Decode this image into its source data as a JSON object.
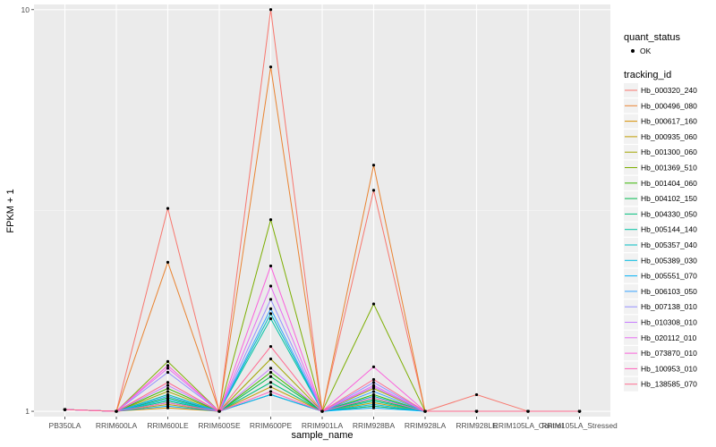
{
  "chart_data": {
    "type": "line",
    "title": "",
    "xlabel": "sample_name",
    "ylabel": "FPKM + 1",
    "y_scale": "log10",
    "ylim": [
      0.97,
      10.3
    ],
    "y_ticks": [
      "1",
      "10"
    ],
    "y_tick_values": [
      1,
      10
    ],
    "categories": [
      "PB350LA",
      "RRIM600LA",
      "RRIM600LE",
      "RRIM600SE",
      "RRIM600PE",
      "RRIM901LA",
      "RRIM928BA",
      "RRIM928LA",
      "RRIM928LE",
      "RRIM105LA_Control",
      "RRIM105LA_Stressed"
    ],
    "grid": true,
    "legend_position": "right",
    "legend_quant": {
      "title": "quant_status",
      "label": "OK"
    },
    "legend_title": "tracking_id",
    "series": [
      {
        "name": "Hb_000320_240",
        "color": "#F8766D",
        "values": [
          1.01,
          1,
          3.2,
          1,
          10,
          1,
          3.55,
          1,
          1.1,
          1,
          1
        ]
      },
      {
        "name": "Hb_000496_080",
        "color": "#EA8331",
        "values": [
          1.01,
          1,
          2.35,
          1,
          7.2,
          1,
          4.1,
          1,
          1,
          1,
          1
        ]
      },
      {
        "name": "Hb_000617_160",
        "color": "#D89000",
        "values": [
          1.01,
          1,
          1.02,
          1,
          1.1,
          1,
          1.03,
          1,
          1,
          1,
          1
        ]
      },
      {
        "name": "Hb_000935_060",
        "color": "#C09B00",
        "values": [
          1.01,
          1,
          1.04,
          1,
          1.15,
          1,
          1.05,
          1,
          1,
          1,
          1
        ]
      },
      {
        "name": "Hb_001300_060",
        "color": "#A3A500",
        "values": [
          1.01,
          1,
          1.12,
          1,
          1.35,
          1,
          1.14,
          1,
          1,
          1,
          1
        ]
      },
      {
        "name": "Hb_001369_510",
        "color": "#7CAE00",
        "values": [
          1.01,
          1,
          1.33,
          1,
          3.0,
          1,
          1.85,
          1,
          1,
          1,
          1
        ]
      },
      {
        "name": "Hb_001404_060",
        "color": "#39B600",
        "values": [
          1.01,
          1,
          1.14,
          1,
          1.25,
          1,
          1.1,
          1,
          1,
          1,
          1
        ]
      },
      {
        "name": "Hb_004102_150",
        "color": "#00BB4E",
        "values": [
          1.01,
          1,
          1.08,
          1,
          1.22,
          1,
          1.07,
          1,
          1,
          1,
          1
        ]
      },
      {
        "name": "Hb_004330_050",
        "color": "#00BF7D",
        "values": [
          1.01,
          1,
          1.06,
          1,
          1.18,
          1,
          1.03,
          1,
          1,
          1,
          1
        ]
      },
      {
        "name": "Hb_005144_140",
        "color": "#00C1A3",
        "values": [
          1.01,
          1,
          1.1,
          1,
          1.7,
          1,
          1.06,
          1,
          1,
          1,
          1
        ]
      },
      {
        "name": "Hb_005357_040",
        "color": "#00BFC4",
        "values": [
          1.01,
          1,
          1.05,
          1,
          1.75,
          1,
          1.09,
          1,
          1,
          1,
          1
        ]
      },
      {
        "name": "Hb_005389_030",
        "color": "#00BAE0",
        "values": [
          1.01,
          1,
          1.07,
          1,
          1.1,
          1,
          1.04,
          1,
          1,
          1,
          1
        ]
      },
      {
        "name": "Hb_005551_070",
        "color": "#00B0F6",
        "values": [
          1.01,
          1,
          1.03,
          1,
          1.1,
          1,
          1.02,
          1,
          1,
          1,
          1
        ]
      },
      {
        "name": "Hb_006103_050",
        "color": "#35A2FF",
        "values": [
          1.01,
          1,
          1.09,
          1,
          1.8,
          1,
          1.12,
          1,
          1,
          1,
          1
        ]
      },
      {
        "name": "Hb_007138_010",
        "color": "#9590FF",
        "values": [
          1.01,
          1,
          1.25,
          1,
          1.9,
          1,
          1.18,
          1,
          1,
          1,
          1
        ]
      },
      {
        "name": "Hb_010308_010",
        "color": "#C77CFF",
        "values": [
          1.01,
          1,
          1.16,
          1,
          1.28,
          1,
          1.15,
          1,
          1,
          1,
          1
        ]
      },
      {
        "name": "Hb_020112_010",
        "color": "#E76BF3",
        "values": [
          1.01,
          1,
          1.28,
          1,
          2.05,
          1,
          1.16,
          1,
          1,
          1,
          1
        ]
      },
      {
        "name": "Hb_073870_010",
        "color": "#FA62DB",
        "values": [
          1.01,
          1,
          1.3,
          1,
          2.3,
          1,
          1.29,
          1,
          1,
          1,
          1
        ]
      },
      {
        "name": "Hb_100953_010",
        "color": "#FF62BC",
        "values": [
          1.01,
          1,
          1.05,
          1,
          1.12,
          1,
          1.08,
          1,
          1,
          1,
          1
        ]
      },
      {
        "name": "Hb_138585_070",
        "color": "#FF6C91",
        "values": [
          1.01,
          1,
          1.18,
          1,
          1.45,
          1,
          1.2,
          1,
          1,
          1,
          1
        ]
      }
    ]
  }
}
